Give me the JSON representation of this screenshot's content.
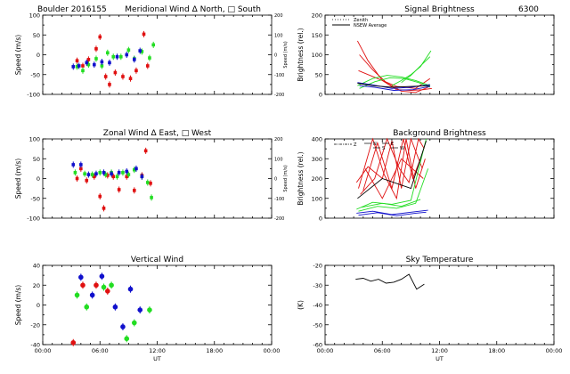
{
  "colors": {
    "red": "#e01010",
    "green": "#22dd22",
    "blue": "#1010cc",
    "black": "#000000",
    "background": "#ffffff"
  },
  "chart_data": [
    {
      "id": "meridional",
      "type": "scatter",
      "title": "Boulder  2016155    Meridional Wind  Δ North, □ South",
      "title_left": "Boulder  2016155",
      "title_right": "Meridional Wind  Δ North, □ South",
      "ylabel": "Speed (m/s)",
      "y2label": "Speed (m/s)",
      "xlim": [
        0,
        24
      ],
      "ylim": [
        -100,
        100
      ],
      "y2lim": [
        -200,
        200
      ],
      "yticks": [
        -100,
        -50,
        0,
        50,
        100
      ],
      "y2ticks": [
        -200,
        -100,
        0,
        100,
        200
      ],
      "xticks": [
        0,
        6,
        12,
        18,
        24
      ],
      "xticklabels": [],
      "series": [
        {
          "color": "red",
          "points": [
            [
              3.6,
              -15
            ],
            [
              4.2,
              -28
            ],
            [
              4.8,
              -12
            ],
            [
              5.6,
              15
            ],
            [
              6.0,
              45
            ],
            [
              6.6,
              -55
            ],
            [
              7.0,
              -75
            ],
            [
              7.6,
              -45
            ],
            [
              8.4,
              -55
            ],
            [
              9.2,
              -60
            ],
            [
              9.8,
              -40
            ],
            [
              10.6,
              52
            ],
            [
              11.0,
              -28
            ]
          ]
        },
        {
          "color": "green",
          "points": [
            [
              3.6,
              -30
            ],
            [
              4.2,
              -40
            ],
            [
              4.8,
              -25
            ],
            [
              5.6,
              -10
            ],
            [
              6.2,
              -28
            ],
            [
              6.8,
              5
            ],
            [
              7.4,
              -5
            ],
            [
              8.2,
              -5
            ],
            [
              9.0,
              12
            ],
            [
              9.6,
              -10
            ],
            [
              10.4,
              8
            ],
            [
              11.2,
              -8
            ],
            [
              11.6,
              25
            ]
          ]
        },
        {
          "color": "blue",
          "points": [
            [
              3.2,
              -30
            ],
            [
              3.8,
              -28
            ],
            [
              4.6,
              -20
            ],
            [
              5.4,
              -25
            ],
            [
              6.2,
              -18
            ],
            [
              7.0,
              -20
            ],
            [
              7.8,
              -5
            ],
            [
              8.8,
              0
            ],
            [
              9.6,
              -12
            ],
            [
              10.2,
              10
            ]
          ]
        }
      ]
    },
    {
      "id": "signal",
      "type": "line",
      "title": "Signal Brightness",
      "title_right": "6300",
      "ylabel": "Brightness (rel.)",
      "legend": [
        "Zenith",
        "NSEW Average"
      ],
      "xlim": [
        0,
        24
      ],
      "ylim": [
        0,
        200
      ],
      "yticks": [
        0,
        50,
        100,
        150,
        200
      ],
      "xticks": [
        0,
        6,
        12,
        18,
        24
      ],
      "xticklabels": [],
      "series": [
        {
          "color": "red",
          "x": [
            3.4,
            4.5,
            6,
            7.5,
            9,
            10.3,
            11.2
          ],
          "y": [
            135,
            85,
            35,
            12,
            10,
            12,
            15
          ]
        },
        {
          "color": "red",
          "x": [
            3.6,
            5,
            6.5,
            8,
            9.5,
            10.8
          ],
          "y": [
            100,
            62,
            28,
            8,
            5,
            18
          ]
        },
        {
          "color": "red",
          "x": [
            3.5,
            5.5,
            7.5,
            9.5,
            11
          ],
          "y": [
            60,
            40,
            20,
            15,
            40
          ]
        },
        {
          "color": "green",
          "x": [
            3.4,
            5,
            6.5,
            8,
            9.5,
            11
          ],
          "y": [
            22,
            40,
            48,
            44,
            35,
            22
          ]
        },
        {
          "color": "green",
          "x": [
            3.6,
            5.2,
            6.8,
            8.3,
            9.8,
            11
          ],
          "y": [
            15,
            32,
            42,
            40,
            30,
            18
          ]
        },
        {
          "color": "green",
          "x": [
            7,
            8,
            9,
            10,
            11.1
          ],
          "y": [
            22,
            35,
            50,
            70,
            110
          ]
        },
        {
          "color": "green",
          "x": [
            8,
            9,
            10,
            11
          ],
          "y": [
            30,
            48,
            72,
            95
          ]
        },
        {
          "color": "blue",
          "x": [
            3.4,
            5,
            7,
            9,
            11
          ],
          "y": [
            30,
            24,
            15,
            18,
            25
          ]
        },
        {
          "color": "blue",
          "x": [
            3.6,
            5.2,
            7.2,
            9.2,
            11
          ],
          "y": [
            22,
            18,
            10,
            12,
            20
          ]
        },
        {
          "color": "black",
          "x": [
            3.4,
            5,
            7,
            9,
            11
          ],
          "y": [
            28,
            22,
            18,
            20,
            22
          ]
        }
      ]
    },
    {
      "id": "zonal",
      "type": "scatter",
      "title": "Zonal Wind      Δ East, □ West",
      "ylabel": "Speed (m/s)",
      "y2label": "Speed (m/s)",
      "xlim": [
        0,
        24
      ],
      "ylim": [
        -100,
        100
      ],
      "y2lim": [
        -200,
        200
      ],
      "yticks": [
        -100,
        -50,
        0,
        50,
        100
      ],
      "y2ticks": [
        -200,
        -100,
        0,
        100,
        200
      ],
      "xticks": [
        0,
        6,
        12,
        18,
        24
      ],
      "xticklabels": [],
      "series": [
        {
          "color": "red",
          "points": [
            [
              3.6,
              0
            ],
            [
              4.0,
              25
            ],
            [
              4.6,
              -5
            ],
            [
              5.4,
              5
            ],
            [
              6.0,
              -45
            ],
            [
              6.4,
              -75
            ],
            [
              6.8,
              8
            ],
            [
              7.4,
              5
            ],
            [
              8.0,
              -28
            ],
            [
              8.8,
              5
            ],
            [
              9.6,
              -30
            ],
            [
              10.4,
              8
            ],
            [
              10.8,
              70
            ],
            [
              11.3,
              -12
            ]
          ]
        },
        {
          "color": "green",
          "points": [
            [
              3.4,
              15
            ],
            [
              4.4,
              12
            ],
            [
              5.2,
              10
            ],
            [
              6.0,
              15
            ],
            [
              6.6,
              10
            ],
            [
              7.2,
              15
            ],
            [
              7.8,
              5
            ],
            [
              8.4,
              15
            ],
            [
              9.0,
              10
            ],
            [
              9.6,
              22
            ],
            [
              10.4,
              5
            ],
            [
              11.0,
              -10
            ],
            [
              11.4,
              -48
            ]
          ]
        },
        {
          "color": "blue",
          "points": [
            [
              3.2,
              35
            ],
            [
              4.0,
              35
            ],
            [
              4.8,
              10
            ],
            [
              5.6,
              12
            ],
            [
              6.4,
              15
            ],
            [
              7.2,
              12
            ],
            [
              8.0,
              15
            ],
            [
              8.8,
              18
            ],
            [
              9.8,
              25
            ],
            [
              10.4,
              5
            ]
          ]
        }
      ]
    },
    {
      "id": "background",
      "type": "line",
      "title": "Background Brightness",
      "ylabel": "Brightness (rel.)",
      "legend": [
        "Z",
        "N",
        "S",
        "E",
        "W"
      ],
      "xlim": [
        0,
        24
      ],
      "ylim": [
        0,
        400
      ],
      "yticks": [
        0,
        100,
        200,
        300,
        400
      ],
      "xticks": [
        0,
        6,
        12,
        18,
        24
      ],
      "xticklabels": [],
      "series": [
        {
          "color": "red",
          "x": [
            3.3,
            4.5,
            6.0,
            7.0,
            8.0,
            9.0,
            10.2
          ],
          "y": [
            180,
            260,
            200,
            390,
            150,
            400,
            250
          ]
        },
        {
          "color": "red",
          "x": [
            3.5,
            5.0,
            6.2,
            7.5,
            8.5,
            9.5,
            10.5
          ],
          "y": [
            150,
            400,
            220,
            100,
            400,
            150,
            300
          ]
        },
        {
          "color": "red",
          "x": [
            3.7,
            5.2,
            6.5,
            7.8,
            8.8,
            9.8,
            10.4
          ],
          "y": [
            120,
            200,
            400,
            250,
            180,
            400,
            350
          ]
        },
        {
          "color": "red",
          "x": [
            4.0,
            5.5,
            7.0,
            8.2,
            9.2,
            10.0
          ],
          "y": [
            140,
            380,
            150,
            400,
            200,
            300
          ]
        },
        {
          "color": "red",
          "x": [
            4.2,
            6.0,
            8.0,
            10.3
          ],
          "y": [
            250,
            100,
            300,
            200
          ]
        },
        {
          "color": "green",
          "x": [
            3.3,
            5.0,
            7.0,
            9.0,
            10.6
          ],
          "y": [
            45,
            80,
            70,
            90,
            400
          ]
        },
        {
          "color": "green",
          "x": [
            3.5,
            5.5,
            7.5,
            9.5,
            10.8
          ],
          "y": [
            35,
            60,
            50,
            75,
            250
          ]
        },
        {
          "color": "green",
          "x": [
            3.8,
            6.0,
            8.0,
            10.0
          ],
          "y": [
            55,
            75,
            60,
            95
          ]
        },
        {
          "color": "blue",
          "x": [
            3.3,
            5.0,
            7.0,
            9.0,
            10.8
          ],
          "y": [
            25,
            35,
            18,
            30,
            40
          ]
        },
        {
          "color": "blue",
          "x": [
            3.5,
            5.5,
            7.5,
            9.5,
            10.6
          ],
          "y": [
            15,
            28,
            12,
            25,
            30
          ]
        },
        {
          "color": "black",
          "x": [
            3.4,
            6.0,
            9.0,
            10.6
          ],
          "y": [
            100,
            200,
            150,
            390
          ]
        }
      ]
    },
    {
      "id": "vertical",
      "type": "scatter",
      "title": "Vertical Wind",
      "ylabel": "Speed (m/s)",
      "xlabel": "UT",
      "xlim": [
        0,
        24
      ],
      "ylim": [
        -40,
        40
      ],
      "yticks": [
        -40,
        -20,
        0,
        20,
        40
      ],
      "xticks": [
        0,
        6,
        12,
        18,
        24
      ],
      "xticklabels": [
        "00:00",
        "06:00",
        "12:00",
        "18:00",
        "00:00"
      ],
      "series": [
        {
          "color": "red",
          "points": [
            [
              3.2,
              -38
            ],
            [
              4.2,
              20
            ],
            [
              5.6,
              20
            ],
            [
              6.8,
              14
            ]
          ]
        },
        {
          "color": "green",
          "points": [
            [
              3.6,
              10
            ],
            [
              4.6,
              -2
            ],
            [
              6.4,
              18
            ],
            [
              7.2,
              20
            ],
            [
              8.8,
              -34
            ],
            [
              9.6,
              -18
            ],
            [
              11.2,
              -5
            ]
          ]
        },
        {
          "color": "blue",
          "points": [
            [
              4.0,
              28
            ],
            [
              5.2,
              10
            ],
            [
              6.2,
              29
            ],
            [
              7.6,
              -2
            ],
            [
              8.4,
              -22
            ],
            [
              9.2,
              16
            ],
            [
              10.2,
              -5
            ]
          ]
        }
      ]
    },
    {
      "id": "sky",
      "type": "line",
      "title": "Sky Temperature",
      "ylabel": "(K)",
      "xlabel": "UT",
      "xlim": [
        0,
        24
      ],
      "ylim": [
        -60,
        -20
      ],
      "yticks": [
        -60,
        -50,
        -40,
        -30,
        -20
      ],
      "xticks": [
        0,
        6,
        12,
        18,
        24
      ],
      "xticklabels": [
        "00:00",
        "06:00",
        "12:00",
        "18:00",
        "00:00"
      ],
      "series": [
        {
          "color": "black",
          "x": [
            3.2,
            4.0,
            4.8,
            5.6,
            6.4,
            7.2,
            8.0,
            8.8,
            9.6,
            10.4
          ],
          "y": [
            -27,
            -26.5,
            -28,
            -27,
            -29,
            -28.5,
            -27,
            -24.5,
            -32,
            -29.5
          ]
        }
      ]
    }
  ]
}
